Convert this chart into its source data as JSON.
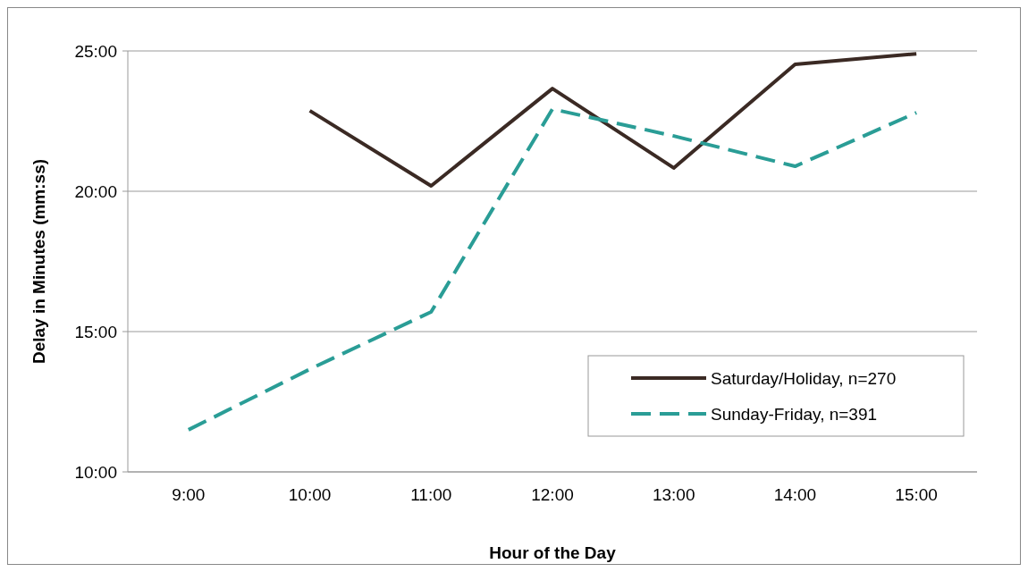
{
  "chart_data": {
    "type": "line",
    "xlabel": "Hour of the Day",
    "ylabel": "Delay in Minutes (mm:ss)",
    "categories": [
      "9:00",
      "10:00",
      "11:00",
      "12:00",
      "13:00",
      "14:00",
      "15:00"
    ],
    "series": [
      {
        "name": "Saturday/Holiday, n=270",
        "color": "#3b2a24",
        "line_style": "solid",
        "values": [
          null,
          22.87,
          20.19,
          23.66,
          20.83,
          24.52,
          24.9
        ]
      },
      {
        "name": "Sunday-Friday, n=391",
        "color": "#2a9d96",
        "line_style": "dashed",
        "values": [
          11.5,
          13.66,
          15.7,
          22.93,
          21.97,
          20.89,
          22.8
        ]
      }
    ],
    "ylim": [
      10,
      25
    ],
    "yticks": [
      {
        "value": 10,
        "label": "10:00"
      },
      {
        "value": 15,
        "label": "15:00"
      },
      {
        "value": 20,
        "label": "20:00"
      },
      {
        "value": 25,
        "label": "25:00"
      }
    ],
    "grid": "y",
    "legend": "bottom right"
  }
}
